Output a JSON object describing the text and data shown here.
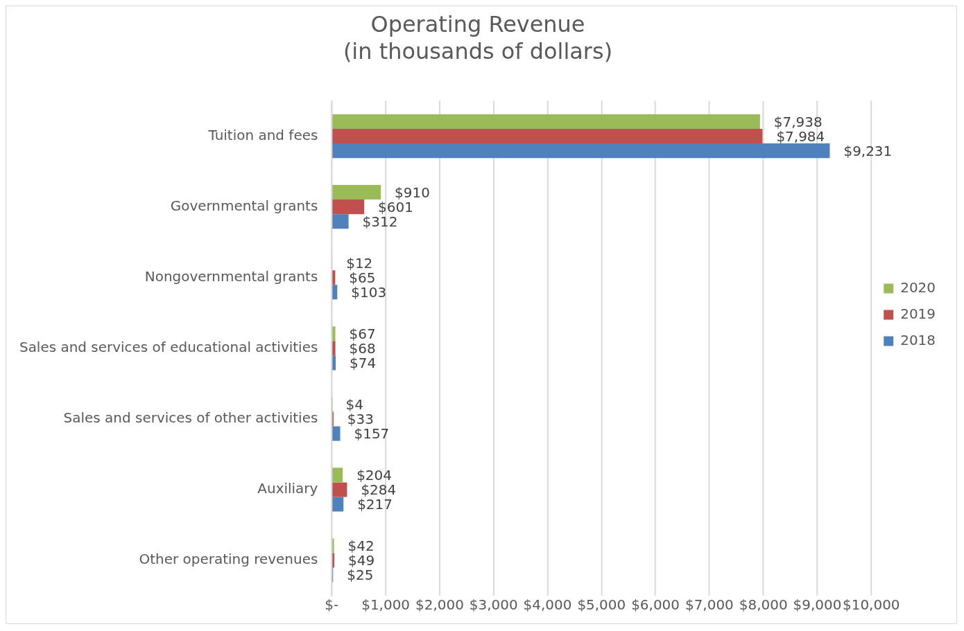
{
  "chart_data": {
    "type": "bar",
    "orientation": "horizontal",
    "title": "Operating Revenue\n(in thousands of dollars)",
    "categories": [
      "Tuition and fees",
      "Governmental grants",
      "Nongovernmental grants",
      "Sales and services of educational activities",
      "Sales and services of other activities",
      "Auxiliary",
      "Other operating revenues"
    ],
    "series": [
      {
        "name": "2020",
        "color": "#9bbb59",
        "values": [
          7938,
          910,
          12,
          67,
          4,
          204,
          42
        ],
        "value_labels": [
          "$7,938",
          "$910",
          "$12",
          "$67",
          "$4",
          "$204",
          "$42"
        ]
      },
      {
        "name": "2019",
        "color": "#c0504d",
        "values": [
          7984,
          601,
          65,
          68,
          33,
          284,
          49
        ],
        "value_labels": [
          "$7,984",
          "$601",
          "$65",
          "$68",
          "$33",
          "$284",
          "$49"
        ]
      },
      {
        "name": "2018",
        "color": "#4f81bd",
        "values": [
          9231,
          312,
          103,
          74,
          157,
          217,
          25
        ],
        "value_labels": [
          "$9,231",
          "$312",
          "$103",
          "$74",
          "$157",
          "$217",
          "$25"
        ]
      }
    ],
    "xlim": [
      0,
      10000
    ],
    "xticks": [
      {
        "value": 0,
        "label": "$-"
      },
      {
        "value": 1000,
        "label": "$1,000"
      },
      {
        "value": 2000,
        "label": "$2,000"
      },
      {
        "value": 3000,
        "label": "$3,000"
      },
      {
        "value": 4000,
        "label": "$4,000"
      },
      {
        "value": 5000,
        "label": "$5,000"
      },
      {
        "value": 6000,
        "label": "$6,000"
      },
      {
        "value": 7000,
        "label": "$7,000"
      },
      {
        "value": 8000,
        "label": "$8,000"
      },
      {
        "value": 9000,
        "label": "$9,000"
      },
      {
        "value": 10000,
        "label": "$10,000"
      }
    ],
    "grid": "x",
    "legend": "right"
  }
}
